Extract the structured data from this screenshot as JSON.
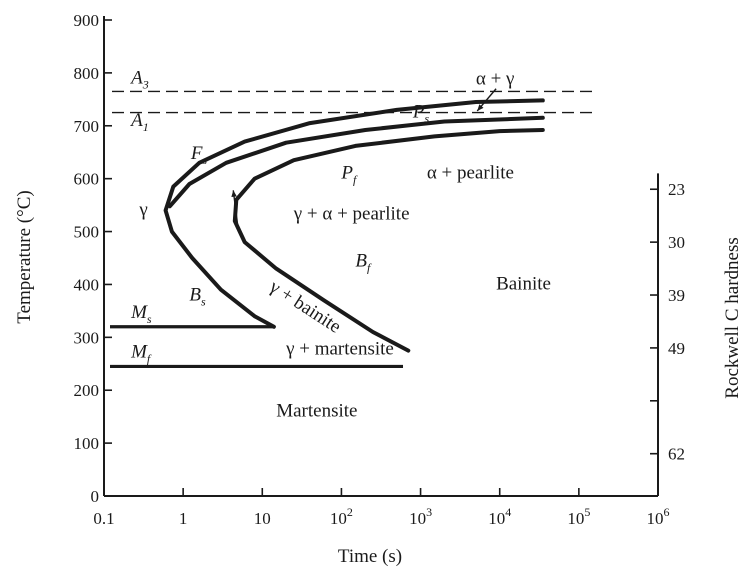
{
  "chart_data": {
    "type": "line",
    "xlabel": "Time (s)",
    "ylabel": "Temperature (°C)",
    "y2label": "Rockwell C hardness",
    "x_scale": "log",
    "xlim": [
      0.1,
      1000000
    ],
    "ylim": [
      0,
      900
    ],
    "x_ticks": [
      {
        "v": 0.1,
        "label": "0.1"
      },
      {
        "v": 1,
        "label": "1"
      },
      {
        "v": 10,
        "label": "10"
      },
      {
        "v": 100,
        "label": "10",
        "sup": "2"
      },
      {
        "v": 1000,
        "label": "10",
        "sup": "3"
      },
      {
        "v": 10000,
        "label": "10",
        "sup": "4"
      },
      {
        "v": 100000,
        "label": "10",
        "sup": "5"
      },
      {
        "v": 1000000,
        "label": "10",
        "sup": "6"
      }
    ],
    "y_ticks": [
      0,
      100,
      200,
      300,
      400,
      500,
      600,
      700,
      800,
      900
    ],
    "y2_ticks": [
      {
        "t": 580,
        "label": "23"
      },
      {
        "t": 480,
        "label": "30"
      },
      {
        "t": 380,
        "label": "39"
      },
      {
        "t": 280,
        "label": "49"
      },
      {
        "t": 180,
        "label": ""
      },
      {
        "t": 80,
        "label": "62"
      }
    ],
    "reference_lines": [
      {
        "name": "A",
        "sub": "3",
        "temp": 765,
        "style": "dashed"
      },
      {
        "name": "A",
        "sub": "1",
        "temp": 725,
        "style": "dashed"
      },
      {
        "name": "M",
        "sub": "s",
        "temp": 320,
        "x_range": [
          0.1,
          14
        ],
        "style": "solid"
      },
      {
        "name": "M",
        "sub": "f",
        "temp": 245,
        "x_range": [
          0.1,
          600
        ],
        "style": "solid"
      }
    ],
    "series": [
      {
        "name": "F",
        "sub": "s",
        "points": [
          [
            14,
            320
          ],
          [
            8,
            340
          ],
          [
            3,
            390
          ],
          [
            1.3,
            450
          ],
          [
            0.72,
            500
          ],
          [
            0.6,
            540
          ],
          [
            0.75,
            585
          ],
          [
            1.6,
            630
          ],
          [
            6,
            670
          ],
          [
            40,
            705
          ],
          [
            500,
            730
          ],
          [
            5000,
            745
          ],
          [
            35000,
            748
          ]
        ]
      },
      {
        "name": "P",
        "sub": "s",
        "points": [
          [
            0.68,
            548
          ],
          [
            1.2,
            590
          ],
          [
            3.5,
            630
          ],
          [
            20,
            668
          ],
          [
            200,
            692
          ],
          [
            2000,
            708
          ],
          [
            35000,
            715
          ]
        ]
      },
      {
        "name": "P",
        "sub": "f",
        "points": [
          [
            700,
            275
          ],
          [
            250,
            310
          ],
          [
            60,
            370
          ],
          [
            15,
            430
          ],
          [
            6,
            480
          ],
          [
            4.5,
            520
          ],
          [
            4.7,
            560
          ],
          [
            8,
            600
          ],
          [
            25,
            635
          ],
          [
            150,
            662
          ],
          [
            1500,
            680
          ],
          [
            10000,
            690
          ],
          [
            35000,
            692
          ]
        ]
      }
    ],
    "annotations": [
      {
        "text": "α + γ",
        "x": 5000,
        "y": 778
      },
      {
        "text": "α + pearlite",
        "x": 1200,
        "y": 600
      },
      {
        "text": "γ + α + pearlite",
        "x": 25,
        "y": 523
      },
      {
        "text": "γ + bainite",
        "x": 12,
        "y": 390,
        "rotate": 33
      },
      {
        "text": "γ + martensite",
        "x": 20,
        "y": 268
      },
      {
        "text": "Bainite",
        "x": 9000,
        "y": 390
      },
      {
        "text": "Martensite",
        "x": 15,
        "y": 150
      },
      {
        "text": "γ",
        "x": 0.28,
        "y": 530
      }
    ],
    "curve_labels": [
      {
        "name": "F",
        "sub": "s",
        "x": 1.25,
        "y": 637
      },
      {
        "name": "P",
        "sub": "s",
        "x": 800,
        "y": 716
      },
      {
        "name": "P",
        "sub": "f",
        "x": 100,
        "y": 600
      },
      {
        "name": "B",
        "sub": "f",
        "x": 150,
        "y": 434
      },
      {
        "name": "B",
        "sub": "s",
        "x": 1.2,
        "y": 370
      },
      {
        "name": "M",
        "sub": "s",
        "x": 0.22,
        "y": 337
      },
      {
        "name": "M",
        "sub": "f",
        "x": 0.22,
        "y": 262
      },
      {
        "name": "A",
        "sub": "3",
        "x": 0.22,
        "y": 780
      },
      {
        "name": "A",
        "sub": "1",
        "x": 0.22,
        "y": 700
      }
    ],
    "grid": false,
    "legend": "none"
  }
}
